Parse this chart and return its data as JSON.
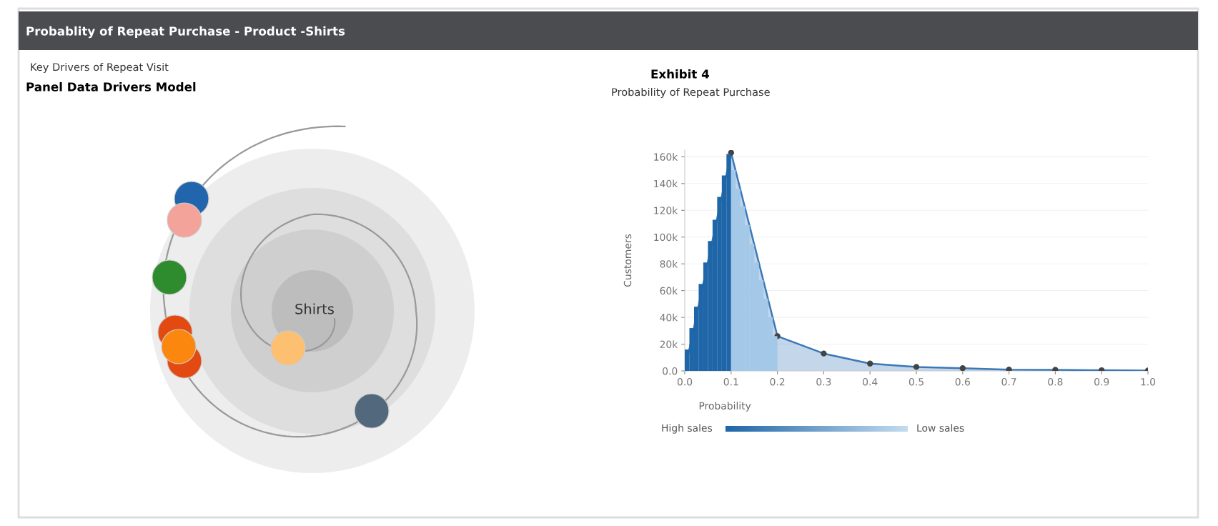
{
  "chart_data": [
    {
      "type": "other",
      "title": "Panel Data Drivers Model",
      "subtitle": "Key Drivers of Repeat Visit",
      "annotations": [
        "Probablity of Repeat Purchase - Product -Shirts",
        "Shirts"
      ]
    },
    {
      "type": "histogram",
      "title": "Exhibit 4",
      "subtitle": "Probability of Repeat Purchase",
      "xlabel": "Probability",
      "ylabel": "Customers",
      "annotations": [
        "High sales",
        "Low sales"
      ],
      "xlim": [
        0,
        1.0
      ],
      "xticks": [
        {
          "value": 0,
          "label": "0.0"
        },
        0.1,
        0.2,
        0.3,
        0.4,
        0.5,
        0.6,
        0.7,
        0.8,
        0.9,
        {
          "value": 1.0,
          "label": "1.0"
        }
      ],
      "ylim": [
        0,
        165000
      ],
      "yticks": [
        {
          "value": 0,
          "label": "0.0"
        },
        {
          "value": 20000,
          "label": "20k"
        },
        {
          "value": 40000,
          "label": "40k"
        },
        {
          "value": 60000,
          "label": "60k"
        },
        {
          "value": 80000,
          "label": "80k"
        },
        {
          "value": 100000,
          "label": "100k"
        },
        {
          "value": 120000,
          "label": "120k"
        },
        {
          "value": 140000,
          "label": "140k"
        },
        {
          "value": 160000,
          "label": "160k"
        }
      ],
      "grid": "y",
      "series": [
        {
          "type": "area",
          "color": "#3a78b8",
          "marker": "circle",
          "x": [
            0,
            0.1,
            0.2,
            0.3,
            0.4,
            0.5,
            0.6,
            0.7,
            0.8,
            0.9,
            1.0
          ],
          "values": [
            0,
            163000,
            26000,
            13000,
            5500,
            3000,
            2000,
            1000,
            800,
            500,
            300
          ]
        },
        {
          "type": "histogram",
          "bins": [
            0,
            0.01,
            0.02,
            0.03,
            0.04,
            0.05,
            0.06,
            0.07,
            0.08,
            0.09,
            0.1,
            0.11,
            0.12,
            0.13,
            0.14,
            0.15,
            0.16,
            0.17,
            0.18,
            0.19,
            0.2
          ],
          "values": [
            16000,
            32000,
            48000,
            65000,
            81000,
            97000,
            113000,
            130000,
            146000,
            162000,
            150000,
            136000,
            123000,
            109000,
            95000,
            81000,
            68000,
            54000,
            40000,
            26000
          ],
          "colors": [
            "#1f66a8",
            "#1f66a8",
            "#1f66a8",
            "#1f66a8",
            "#1f66a8",
            "#1f66a8",
            "#1f66a8",
            "#1f66a8",
            "#1f66a8",
            "#1f66a8",
            "#a3c8e8",
            "#a3c8e8",
            "#a3c8e8",
            "#a3c8e8",
            "#a3c8e8",
            "#a3c8e8",
            "#a3c8e8",
            "#a3c8e8",
            "#a3c8e8",
            "#a3c8e8"
          ]
        }
      ]
    }
  ]
}
